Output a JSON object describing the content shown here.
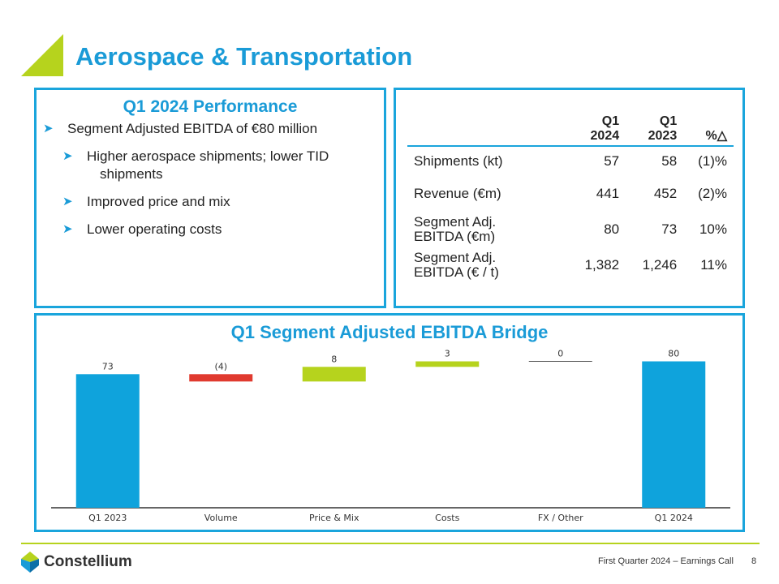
{
  "header": {
    "title": "Aerospace & Transportation"
  },
  "performance": {
    "title": "Q1 2024 Performance",
    "bullets": [
      {
        "text": "Segment Adjusted EBITDA of €80 million",
        "level": 1
      },
      {
        "text_line1": "Higher aerospace shipments; lower TID",
        "text_line2": "shipments",
        "level": 2
      },
      {
        "text": "Improved price and mix",
        "level": 2
      },
      {
        "text": "Lower operating costs",
        "level": 2
      }
    ]
  },
  "kpi_table": {
    "headers": {
      "col1_line1": "Q1",
      "col1_line2": "2024",
      "col2_line1": "Q1",
      "col2_line2": "2023",
      "col3": "%△"
    },
    "rows": [
      {
        "label_line1": "Shipments (kt)",
        "label_line2": "",
        "q1_2024": "57",
        "q1_2023": "58",
        "pct": "(1)%"
      },
      {
        "label_line1": "Revenue (€m)",
        "label_line2": "",
        "q1_2024": "441",
        "q1_2023": "452",
        "pct": "(2)%"
      },
      {
        "label_line1": "Segment Adj.",
        "label_line2": "EBITDA (€m)",
        "q1_2024": "80",
        "q1_2023": "73",
        "pct": "10%"
      },
      {
        "label_line1": "Segment Adj.",
        "label_line2": "EBITDA (€ / t)",
        "q1_2024": "1,382",
        "q1_2023": "1,246",
        "pct": "11%"
      }
    ]
  },
  "chart_data": {
    "type": "bar",
    "title": "Q1 Segment Adjusted EBITDA Bridge",
    "subtype": "waterfall",
    "categories": [
      "Q1 2023",
      "Volume",
      "Price & Mix",
      "Costs",
      "FX / Other",
      "Q1 2024"
    ],
    "values": [
      73,
      -4,
      8,
      3,
      0,
      80
    ],
    "data_labels": [
      "73",
      "(4)",
      "8",
      "3",
      "0",
      "80"
    ],
    "kinds": [
      "total",
      "delta",
      "delta",
      "delta",
      "delta",
      "total"
    ],
    "colors": {
      "total": "#0fa3dc",
      "negative": "#e03a2f",
      "positive": "#b6d31d",
      "zero": "#333333"
    },
    "ylim": [
      0,
      82
    ]
  },
  "footer": {
    "logo_text": "Constellium",
    "event": "First Quarter 2024 – Earnings Call",
    "page": "8"
  },
  "colors": {
    "accent": "#1a9bd7",
    "border": "#1aa5dc",
    "lime": "#b6d31d"
  }
}
